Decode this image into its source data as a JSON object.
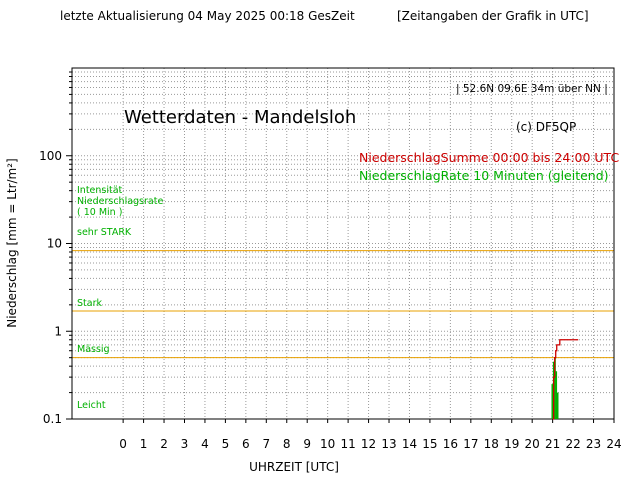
{
  "header": {
    "left": "letzte Aktualisierung 04 May 2025 00:18 GesZeit",
    "right": "[Zeitangaben der Grafik in UTC]"
  },
  "chart_data": {
    "type": "area",
    "title": "Wetterdaten - Mandelsloh",
    "location": "| 52.6N 09.6E 34m über NN |",
    "credit": "(c) DF5QP",
    "xlabel": "UHRZEIT [UTC]",
    "ylabel": "Niederschlag [mm = Ltr/m²]",
    "y_scale": "log",
    "ylim": [
      0.1,
      1000
    ],
    "xlim": [
      -2.5,
      24
    ],
    "x_ticks": [
      0,
      1,
      2,
      3,
      4,
      5,
      6,
      7,
      8,
      9,
      10,
      11,
      12,
      13,
      14,
      15,
      16,
      17,
      18,
      19,
      20,
      21,
      22,
      23,
      24
    ],
    "y_tick_labels": [
      {
        "value": 0.1,
        "label": "0.1"
      },
      {
        "value": 1,
        "label": "1"
      },
      {
        "value": 10,
        "label": "10"
      },
      {
        "value": 100,
        "label": "100"
      }
    ],
    "grid": true,
    "legend": [
      {
        "name": "NiederschlagSumme 00:00 bis 24:00 UTC",
        "color": "#cc0000"
      },
      {
        "name": "NiederschlagRate 10 Minuten (gleitend)",
        "color": "#00b000"
      }
    ],
    "intensity_labels": {
      "header": [
        "Intensität",
        "Niederschlagsrate",
        "( 10 Min )"
      ],
      "very_strong": "sehr STARK",
      "strong": "Stark",
      "moderate": "Mässig",
      "light": "Leicht"
    },
    "thresholds": [
      {
        "name": "sehr STARK",
        "value": 8.3
      },
      {
        "name": "Stark",
        "value": 1.7
      },
      {
        "name": "Mässig",
        "value": 0.5
      }
    ],
    "threshold_color": "#e8a000",
    "label_color": "#00b000",
    "series": [
      {
        "name": "NiederschlagSumme 00:00 bis 24:00 UTC",
        "kind": "step-line",
        "color": "#cc0000",
        "x": [
          21.0,
          21.05,
          21.1,
          21.15,
          21.2,
          21.3,
          21.35,
          22.25
        ],
        "y": [
          0.1,
          0.3,
          0.5,
          0.6,
          0.7,
          0.7,
          0.8,
          0.8
        ]
      },
      {
        "name": "NiederschlagRate 10 Minuten (gleitend)",
        "kind": "bars",
        "color": "#00b000",
        "x": [
          20.98,
          21.05,
          21.12,
          21.18,
          21.25,
          21.32,
          21.38
        ],
        "y": [
          0.25,
          0.45,
          0.5,
          0.35,
          0.2,
          0.1,
          0.1
        ]
      }
    ]
  }
}
